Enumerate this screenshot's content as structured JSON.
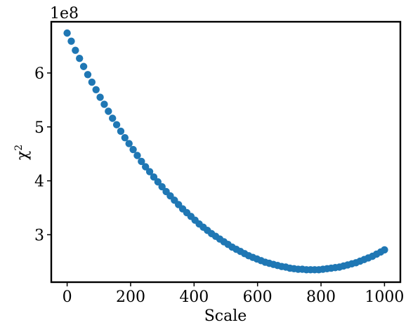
{
  "chart_data": {
    "type": "scatter",
    "title": "",
    "xlabel": "Scale",
    "ylabel": "χ",
    "ylabel_superscript": "2",
    "y_offset_text": "1e8",
    "xlim": [
      -50,
      1050
    ],
    "ylim": [
      2.12,
      6.95
    ],
    "y_multiplier": 100000000,
    "x_ticks": [
      0,
      200,
      400,
      600,
      800,
      1000
    ],
    "y_ticks": [
      3,
      4,
      5,
      6
    ],
    "grid": false,
    "legend": "none",
    "marker_color": "#1f77b4",
    "series": [
      {
        "x": [
          0,
          13,
          26,
          39,
          52,
          65,
          78,
          91,
          104,
          117,
          130,
          143,
          156,
          169,
          182,
          195,
          208,
          221,
          234,
          247,
          260,
          273,
          286,
          299,
          312,
          325,
          338,
          351,
          364,
          377,
          390,
          403,
          416,
          429,
          442,
          455,
          468,
          481,
          494,
          507,
          520,
          533,
          546,
          559,
          572,
          585,
          598,
          611,
          624,
          637,
          650,
          663,
          676,
          689,
          702,
          715,
          728,
          741,
          754,
          767,
          780,
          793,
          806,
          819,
          832,
          845,
          858,
          871,
          884,
          897,
          910,
          923,
          936,
          949,
          962,
          975,
          988,
          1000
        ],
        "y": [
          6.74,
          6.59,
          6.42,
          6.27,
          6.12,
          5.97,
          5.83,
          5.69,
          5.55,
          5.42,
          5.29,
          5.16,
          5.04,
          4.92,
          4.8,
          4.69,
          4.58,
          4.47,
          4.36,
          4.26,
          4.17,
          4.07,
          3.98,
          3.89,
          3.8,
          3.72,
          3.64,
          3.56,
          3.48,
          3.41,
          3.34,
          3.27,
          3.2,
          3.14,
          3.08,
          3.02,
          2.97,
          2.92,
          2.87,
          2.82,
          2.77,
          2.73,
          2.69,
          2.65,
          2.61,
          2.58,
          2.55,
          2.52,
          2.49,
          2.47,
          2.45,
          2.43,
          2.41,
          2.4,
          2.38,
          2.37,
          2.36,
          2.36,
          2.35,
          2.35,
          2.35,
          2.35,
          2.36,
          2.37,
          2.38,
          2.39,
          2.4,
          2.42,
          2.44,
          2.46,
          2.48,
          2.51,
          2.54,
          2.57,
          2.6,
          2.64,
          2.68,
          2.72
        ]
      }
    ]
  }
}
